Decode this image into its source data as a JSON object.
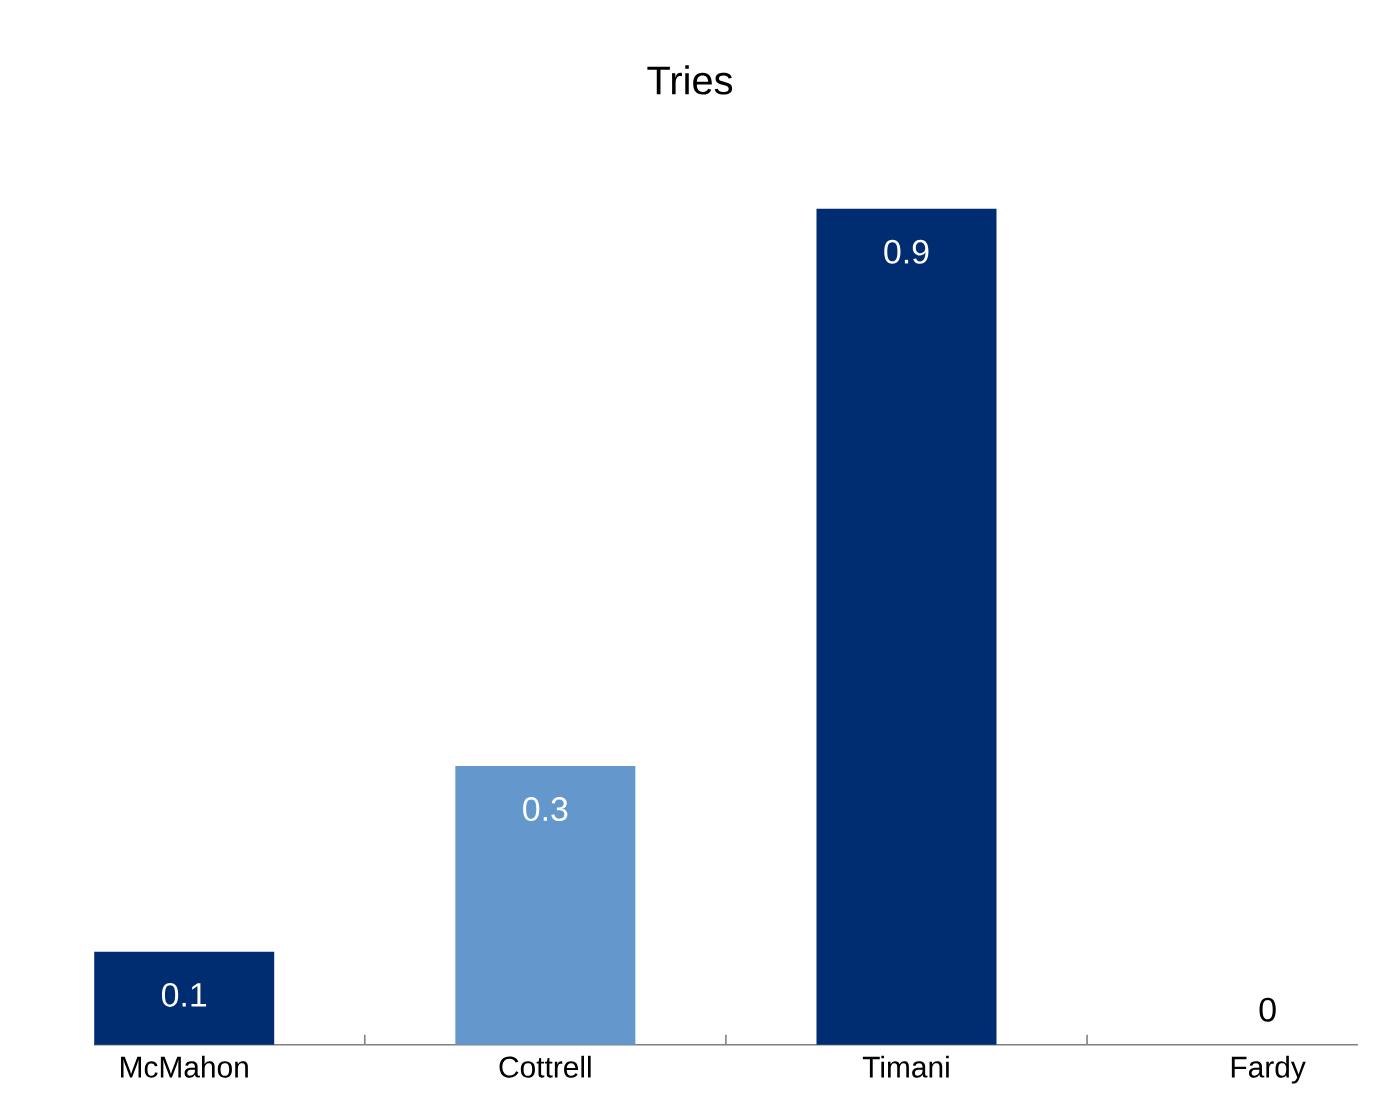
{
  "chart_data": {
    "type": "bar",
    "title": "Tries",
    "categories": [
      "McMahon",
      "Cottrell",
      "Timani",
      "Fardy"
    ],
    "values": [
      0.1,
      0.3,
      0.9,
      0
    ],
    "colors": [
      "#002d72",
      "#6497cc",
      "#002d72",
      "#002d72"
    ],
    "data_labels": true
  }
}
